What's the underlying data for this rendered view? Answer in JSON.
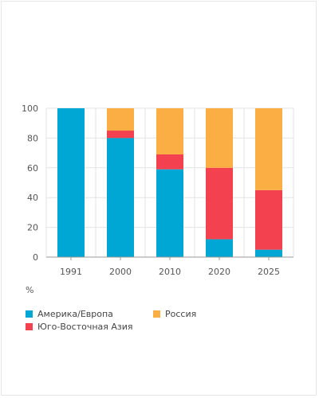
{
  "chart_data": {
    "type": "bar",
    "stacked": true,
    "categories": [
      "1991",
      "2000",
      "2010",
      "2020",
      "2025"
    ],
    "series": [
      {
        "name": "Америка/Европа",
        "color": "#00a6d4",
        "values": [
          100,
          80,
          59,
          12,
          5
        ]
      },
      {
        "name": "Юго-Восточная Азия",
        "color": "#f4414f",
        "values": [
          0,
          5,
          10,
          48,
          40
        ]
      },
      {
        "name": "Россия",
        "color": "#fbae43",
        "values": [
          0,
          15,
          31,
          40,
          55
        ]
      }
    ],
    "ylim": [
      0,
      100
    ],
    "yticks": [
      "0",
      "20",
      "40",
      "60",
      "80",
      "100"
    ],
    "unit_label": "%",
    "grid": true,
    "legend_position": "bottom"
  }
}
